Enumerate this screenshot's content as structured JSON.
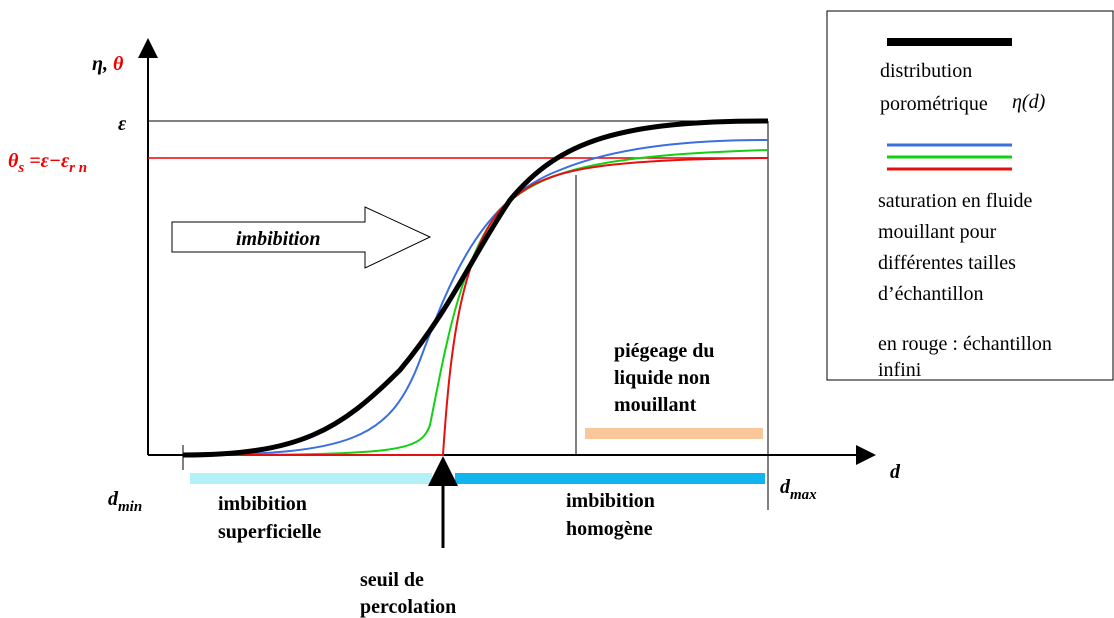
{
  "axes": {
    "y_label": {
      "eta": "η,",
      "theta": "θ"
    },
    "x_label": "d",
    "epsilon": "ε",
    "theta_s": {
      "a": "θ",
      "b": "s",
      "c": " =ε−ε",
      "d": "r n"
    },
    "d_min": {
      "a": "d",
      "b": "min"
    },
    "d_max": {
      "a": "d",
      "b": "max"
    }
  },
  "arrow_label": "imbibition",
  "trapping": [
    "piégeage du",
    "liquide non",
    "mouillant"
  ],
  "zones": {
    "superficial": [
      "imbibition",
      "superficielle"
    ],
    "homogeneous": [
      "imbibition",
      "homogène"
    ]
  },
  "threshold": [
    "seuil de",
    "percolation"
  ],
  "legend": {
    "distribution": [
      "distribution",
      "porométrique"
    ],
    "eta_d": "η(d)",
    "saturation": [
      "saturation en fluide",
      "mouillant pour",
      "différentes tailles",
      "d’échantillon"
    ],
    "red": [
      "en rouge : échantillon",
      "infini"
    ]
  }
}
